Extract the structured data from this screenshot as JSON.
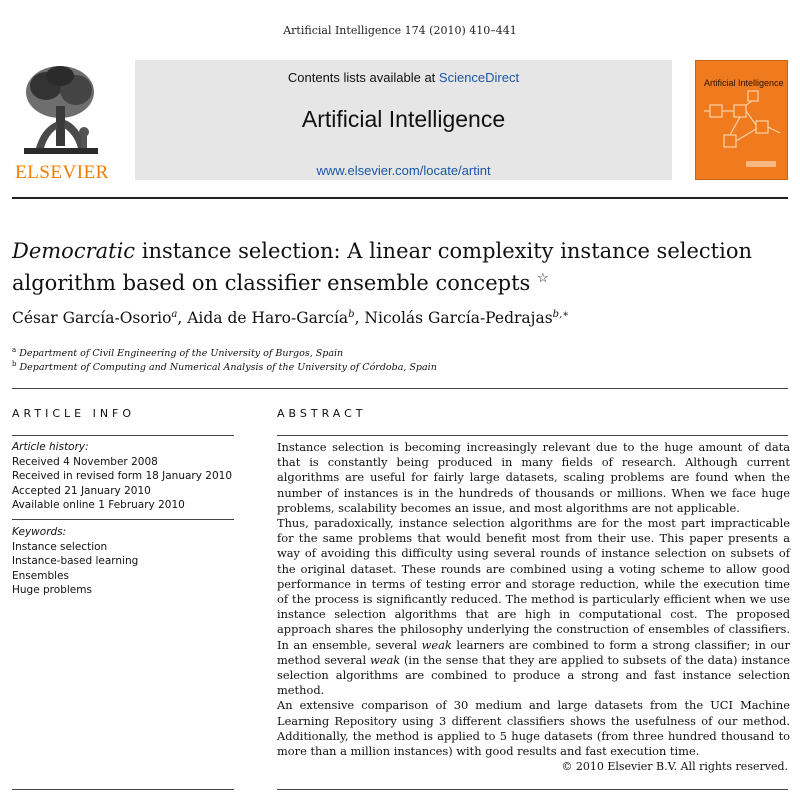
{
  "journal_ref": "Artificial Intelligence 174 (2010) 410–441",
  "publisher": "ELSEVIER",
  "header": {
    "contents_prefix": "Contents lists available at ",
    "contents_link": "ScienceDirect",
    "journal_name": "Artificial Intelligence",
    "url": "www.elsevier.com/locate/artint"
  },
  "cover": {
    "title": "Artificial Intelligence"
  },
  "article": {
    "title_italic": "Democratic",
    "title_rest": " instance selection: A linear complexity instance selection algorithm based on classifier ensemble concepts",
    "title_mark": "☆",
    "authors": [
      {
        "name": "César García-Osorio",
        "sup": "a"
      },
      {
        "name": "Aida de Haro-García",
        "sup": "b"
      },
      {
        "name": "Nicolás García-Pedrajas",
        "sup": "b,∗"
      }
    ],
    "affiliations": [
      {
        "mark": "a",
        "text": "Department of Civil Engineering of the University of Burgos, Spain"
      },
      {
        "mark": "b",
        "text": "Department of Computing and Numerical Analysis of the University of Córdoba, Spain"
      }
    ]
  },
  "article_info": {
    "heading": "ARTICLE INFO",
    "history_label": "Article history:",
    "history": [
      "Received 4 November 2008",
      "Received in revised form 18 January 2010",
      "Accepted 21 January 2010",
      "Available online 1 February 2010"
    ],
    "keywords_label": "Keywords:",
    "keywords": [
      "Instance selection",
      "Instance-based learning",
      "Ensembles",
      "Huge problems"
    ]
  },
  "abstract": {
    "heading": "ABSTRACT",
    "p1": "Instance selection is becoming increasingly relevant due to the huge amount of data that is constantly being produced in many fields of research. Although current algorithms are useful for fairly large datasets, scaling problems are found when the number of instances is in the hundreds of thousands or millions. When we face huge problems, scalability becomes an issue, and most algorithms are not applicable.",
    "p2a": "Thus, paradoxically, instance selection algorithms are for the most part impracticable for the same problems that would benefit most from their use. This paper presents a way of avoiding this difficulty using several rounds of instance selection on subsets of the original dataset. These rounds are combined using a voting scheme to allow good performance in terms of testing error and storage reduction, while the execution time of the process is significantly reduced. The method is particularly efficient when we use instance selection algorithms that are high in computational cost. The proposed approach shares the philosophy underlying the construction of ensembles of classifiers. In an ensemble, several ",
    "p2_weak1": "weak",
    "p2b": " learners are combined to form a strong classifier; in our method several ",
    "p2_weak2": "weak",
    "p2c": " (in the sense that they are applied to subsets of the data) instance selection algorithms are combined to produce a strong and fast instance selection method.",
    "p3": "An extensive comparison of 30 medium and large datasets from the UCI Machine Learning Repository using 3 different classifiers shows the usefulness of our method. Additionally, the method is applied to 5 huge datasets (from three hundred thousand to more than a million instances) with good results and fast execution time.",
    "copyright": "© 2010 Elsevier B.V. All rights reserved."
  }
}
